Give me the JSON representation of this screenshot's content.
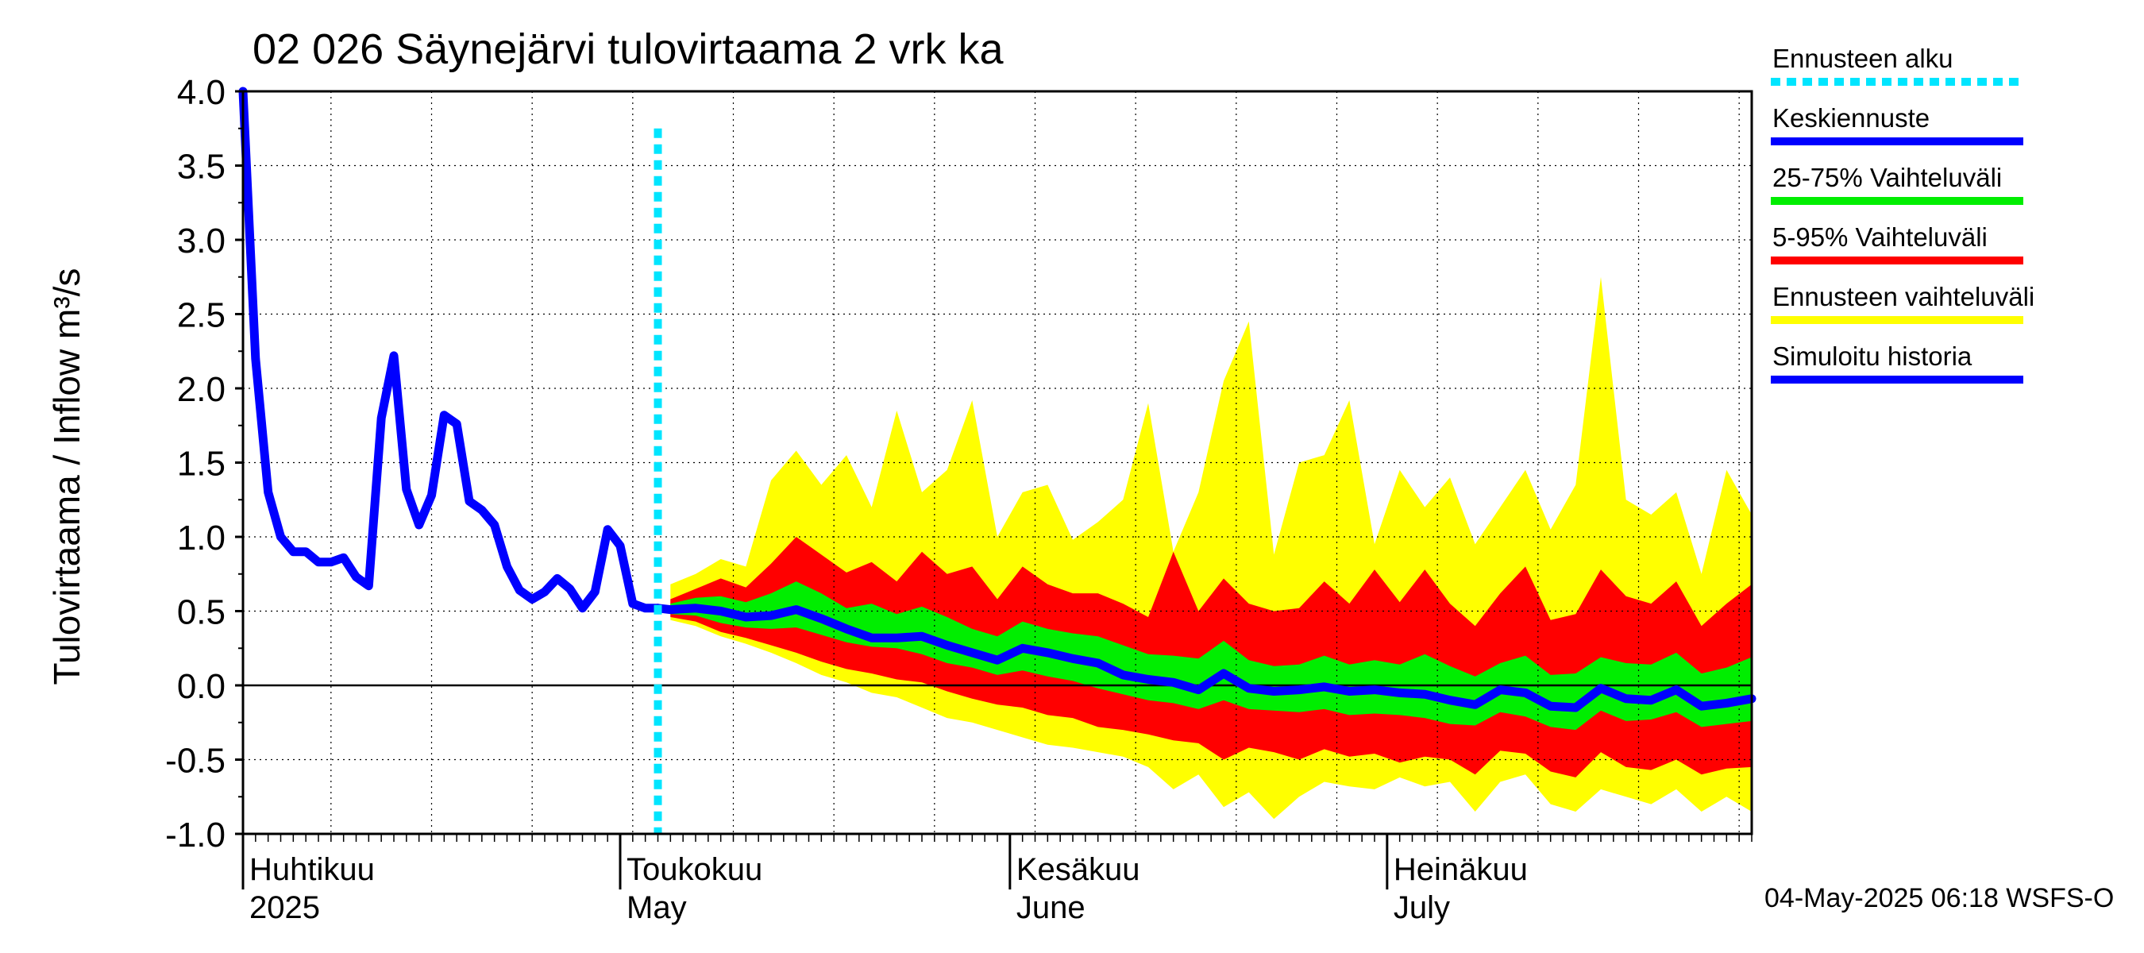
{
  "chart_data": {
    "type": "area",
    "title": "02 026 Säynejärvi tulovirtaama 2 vrk ka",
    "ylabel": "Tulovirtaama / Inflow    m³/s",
    "ylim": [
      -1.0,
      4.0
    ],
    "yticks": [
      "4.0",
      "3.5",
      "3.0",
      "2.5",
      "2.0",
      "1.5",
      "1.0",
      "0.5",
      "0.0",
      "-0.5",
      "-1.0"
    ],
    "xrange_days": [
      -33,
      87
    ],
    "month_labels": [
      {
        "day": -33,
        "fi": "Huhtikuu",
        "en": "2025"
      },
      {
        "day": -3,
        "fi": "Toukokuu",
        "en": "May"
      },
      {
        "day": 28,
        "fi": "Kesäkuu",
        "en": "June"
      },
      {
        "day": 58,
        "fi": "Heinäkuu",
        "en": "July"
      }
    ],
    "forecast_start_day": 0,
    "grid": true,
    "legend_position": "right",
    "legend": [
      {
        "label": "Ennusteen alku",
        "color": "#00e5ff",
        "style": "dotted"
      },
      {
        "label": "Keskiennuste",
        "color": "#0000ff",
        "style": "solid"
      },
      {
        "label": "25-75% Vaihteluväli",
        "color": "#00ee00",
        "style": "solid"
      },
      {
        "label": "5-95% Vaihteluväli",
        "color": "#ff0000",
        "style": "solid"
      },
      {
        "label": "Ennusteen vaihteluväli",
        "color": "#ffff00",
        "style": "solid"
      },
      {
        "label": "Simuloitu historia",
        "color": "#0000ff",
        "style": "solid"
      }
    ],
    "colors": {
      "yellow": "#ffff00",
      "red": "#ff0000",
      "green": "#00ee00",
      "blue": "#0000ff",
      "cyan": "#00e5ff"
    },
    "history": {
      "x": [
        -33,
        -32,
        -31,
        -30,
        -29,
        -28,
        -27,
        -26,
        -25,
        -24,
        -23,
        -22,
        -21,
        -20,
        -19,
        -18,
        -17,
        -16,
        -15,
        -14,
        -13,
        -12,
        -11,
        -10,
        -9,
        -8,
        -7,
        -6,
        -5,
        -4,
        -3,
        -2,
        -1,
        0
      ],
      "y": [
        4.0,
        2.2,
        1.3,
        1.0,
        0.9,
        0.9,
        0.83,
        0.83,
        0.86,
        0.73,
        0.67,
        1.8,
        2.22,
        1.32,
        1.08,
        1.28,
        1.82,
        1.76,
        1.24,
        1.18,
        1.08,
        0.8,
        0.64,
        0.58,
        0.63,
        0.72,
        0.65,
        0.52,
        0.63,
        1.05,
        0.94,
        0.55,
        0.52,
        0.52
      ]
    },
    "forecast": {
      "x": [
        1,
        3,
        5,
        7,
        9,
        11,
        13,
        15,
        17,
        19,
        21,
        23,
        25,
        27,
        29,
        31,
        33,
        35,
        37,
        39,
        41,
        43,
        45,
        47,
        49,
        51,
        53,
        55,
        57,
        59,
        61,
        63,
        65,
        67,
        69,
        71,
        73,
        75,
        77,
        79,
        81,
        83,
        85,
        87
      ],
      "median": [
        0.51,
        0.52,
        0.5,
        0.46,
        0.47,
        0.51,
        0.45,
        0.38,
        0.32,
        0.32,
        0.33,
        0.27,
        0.22,
        0.17,
        0.25,
        0.22,
        0.18,
        0.15,
        0.07,
        0.04,
        0.02,
        -0.03,
        0.08,
        -0.02,
        -0.04,
        -0.03,
        -0.01,
        -0.04,
        -0.03,
        -0.05,
        -0.06,
        -0.1,
        -0.13,
        -0.03,
        -0.05,
        -0.14,
        -0.15,
        -0.02,
        -0.09,
        -0.1,
        -0.03,
        -0.14,
        -0.12,
        -0.09
      ],
      "p25": [
        0.48,
        0.47,
        0.42,
        0.39,
        0.38,
        0.39,
        0.34,
        0.29,
        0.26,
        0.25,
        0.21,
        0.15,
        0.12,
        0.07,
        0.1,
        0.06,
        0.03,
        -0.02,
        -0.06,
        -0.1,
        -0.12,
        -0.16,
        -0.1,
        -0.16,
        -0.17,
        -0.18,
        -0.16,
        -0.2,
        -0.19,
        -0.2,
        -0.22,
        -0.26,
        -0.27,
        -0.18,
        -0.21,
        -0.28,
        -0.3,
        -0.17,
        -0.24,
        -0.23,
        -0.18,
        -0.28,
        -0.26,
        -0.24
      ],
      "p75": [
        0.55,
        0.59,
        0.6,
        0.56,
        0.62,
        0.7,
        0.62,
        0.52,
        0.55,
        0.48,
        0.53,
        0.46,
        0.38,
        0.33,
        0.43,
        0.38,
        0.35,
        0.33,
        0.27,
        0.21,
        0.2,
        0.18,
        0.3,
        0.17,
        0.13,
        0.14,
        0.2,
        0.14,
        0.17,
        0.14,
        0.21,
        0.13,
        0.06,
        0.15,
        0.2,
        0.07,
        0.08,
        0.19,
        0.15,
        0.14,
        0.22,
        0.08,
        0.12,
        0.19
      ],
      "p5": [
        0.46,
        0.43,
        0.36,
        0.32,
        0.27,
        0.22,
        0.16,
        0.11,
        0.08,
        0.04,
        0.02,
        -0.04,
        -0.09,
        -0.13,
        -0.15,
        -0.2,
        -0.22,
        -0.28,
        -0.3,
        -0.33,
        -0.37,
        -0.39,
        -0.5,
        -0.42,
        -0.45,
        -0.5,
        -0.43,
        -0.48,
        -0.46,
        -0.52,
        -0.48,
        -0.5,
        -0.6,
        -0.44,
        -0.46,
        -0.58,
        -0.62,
        -0.45,
        -0.55,
        -0.57,
        -0.5,
        -0.6,
        -0.56,
        -0.55
      ],
      "p95": [
        0.58,
        0.65,
        0.72,
        0.66,
        0.82,
        1.0,
        0.88,
        0.76,
        0.83,
        0.7,
        0.9,
        0.75,
        0.8,
        0.58,
        0.8,
        0.68,
        0.62,
        0.62,
        0.55,
        0.46,
        0.9,
        0.5,
        0.72,
        0.55,
        0.5,
        0.52,
        0.7,
        0.55,
        0.78,
        0.56,
        0.78,
        0.55,
        0.4,
        0.62,
        0.8,
        0.44,
        0.48,
        0.78,
        0.6,
        0.55,
        0.7,
        0.4,
        0.55,
        0.68
      ],
      "min": [
        0.44,
        0.4,
        0.33,
        0.28,
        0.22,
        0.15,
        0.07,
        0.02,
        -0.05,
        -0.08,
        -0.15,
        -0.22,
        -0.25,
        -0.3,
        -0.35,
        -0.4,
        -0.42,
        -0.45,
        -0.48,
        -0.55,
        -0.7,
        -0.6,
        -0.82,
        -0.72,
        -0.9,
        -0.75,
        -0.65,
        -0.68,
        -0.7,
        -0.62,
        -0.68,
        -0.65,
        -0.85,
        -0.65,
        -0.6,
        -0.8,
        -0.85,
        -0.7,
        -0.75,
        -0.8,
        -0.7,
        -0.85,
        -0.75,
        -0.85
      ],
      "max": [
        0.68,
        0.75,
        0.85,
        0.8,
        1.38,
        1.58,
        1.35,
        1.55,
        1.2,
        1.85,
        1.3,
        1.45,
        1.92,
        1.0,
        1.3,
        1.35,
        0.98,
        1.1,
        1.25,
        1.9,
        0.9,
        1.3,
        2.05,
        2.45,
        0.88,
        1.5,
        1.55,
        1.92,
        0.95,
        1.45,
        1.2,
        1.4,
        0.95,
        1.2,
        1.45,
        1.05,
        1.35,
        2.75,
        1.25,
        1.15,
        1.3,
        0.75,
        1.45,
        1.15
      ]
    },
    "footer": "04-May-2025 06:18 WSFS-O"
  }
}
